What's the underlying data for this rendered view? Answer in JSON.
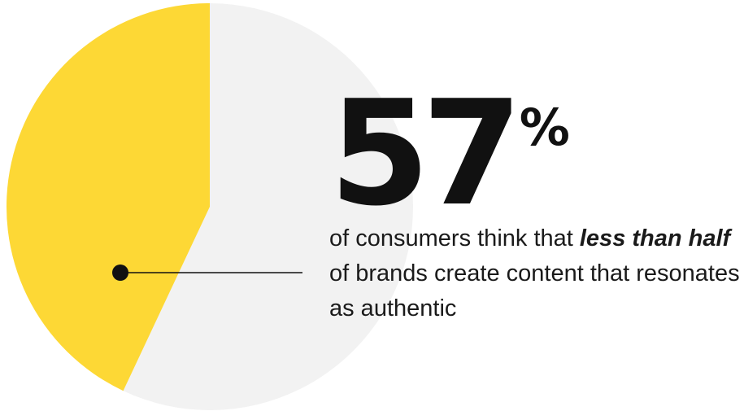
{
  "chart_data": {
    "type": "pie",
    "slices": [
      {
        "value": 57,
        "color": "#f2f2f2"
      },
      {
        "value": 43,
        "color": "#fdd835"
      }
    ],
    "highlight": {
      "value": "57",
      "unit": "%"
    },
    "annotation": {
      "before": "of consumers think that ",
      "emphasis": "less than half",
      "after": " of brands create content that resonates as authentic"
    },
    "colors": {
      "line": "#111111",
      "text": "#111111"
    }
  }
}
